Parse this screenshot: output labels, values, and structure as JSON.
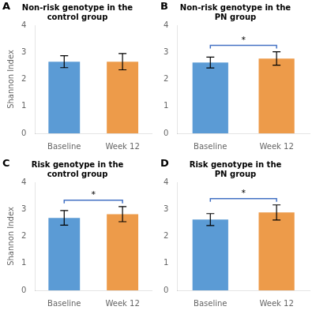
{
  "chart_data": [
    {
      "type": "bar",
      "panel_label": "A",
      "title": "Non-risk genotype in the\ncontrol group",
      "categories": [
        "Baseline",
        "Week 12"
      ],
      "values": [
        2.65,
        2.65
      ],
      "errors": [
        0.22,
        0.3
      ],
      "colors": [
        "#5B9BD5",
        "#ED9B4A"
      ],
      "y_label": "Shannon Index",
      "ylim": [
        0,
        4
      ],
      "yticks": [
        0,
        1,
        2,
        3,
        4
      ],
      "grid": false
    },
    {
      "type": "bar",
      "panel_label": "B",
      "title": "Non-risk genotype in the\nPN group",
      "categories": [
        "Baseline",
        "Week 12"
      ],
      "values": [
        2.62,
        2.77
      ],
      "errors": [
        0.2,
        0.25
      ],
      "colors": [
        "#5B9BD5",
        "#ED9B4A"
      ],
      "annotations": [
        {
          "text": "*",
          "from": "Baseline",
          "to": "Week 12",
          "color": "#4472C4"
        }
      ],
      "ylim": [
        0,
        4
      ],
      "yticks": [
        0,
        1,
        2,
        3,
        4
      ],
      "grid": false
    },
    {
      "type": "bar",
      "panel_label": "C",
      "title": "Risk genotype in the\ncontrol group",
      "categories": [
        "Baseline",
        "Week 12"
      ],
      "values": [
        2.68,
        2.82
      ],
      "errors": [
        0.27,
        0.28
      ],
      "colors": [
        "#5B9BD5",
        "#ED9B4A"
      ],
      "y_label": "Shannon Index",
      "annotations": [
        {
          "text": "*",
          "from": "Baseline",
          "to": "Week 12",
          "color": "#4472C4"
        }
      ],
      "ylim": [
        0,
        4
      ],
      "yticks": [
        0,
        1,
        2,
        3,
        4
      ],
      "grid": false
    },
    {
      "type": "bar",
      "panel_label": "D",
      "title": "Risk genotype in the\nPN group",
      "categories": [
        "Baseline",
        "Week 12"
      ],
      "values": [
        2.62,
        2.88
      ],
      "errors": [
        0.22,
        0.28
      ],
      "colors": [
        "#5B9BD5",
        "#ED9B4A"
      ],
      "annotations": [
        {
          "text": "*",
          "from": "Baseline",
          "to": "Week 12",
          "color": "#4472C4"
        }
      ],
      "ylim": [
        0,
        4
      ],
      "yticks": [
        0,
        1,
        2,
        3,
        4
      ],
      "grid": false
    }
  ]
}
